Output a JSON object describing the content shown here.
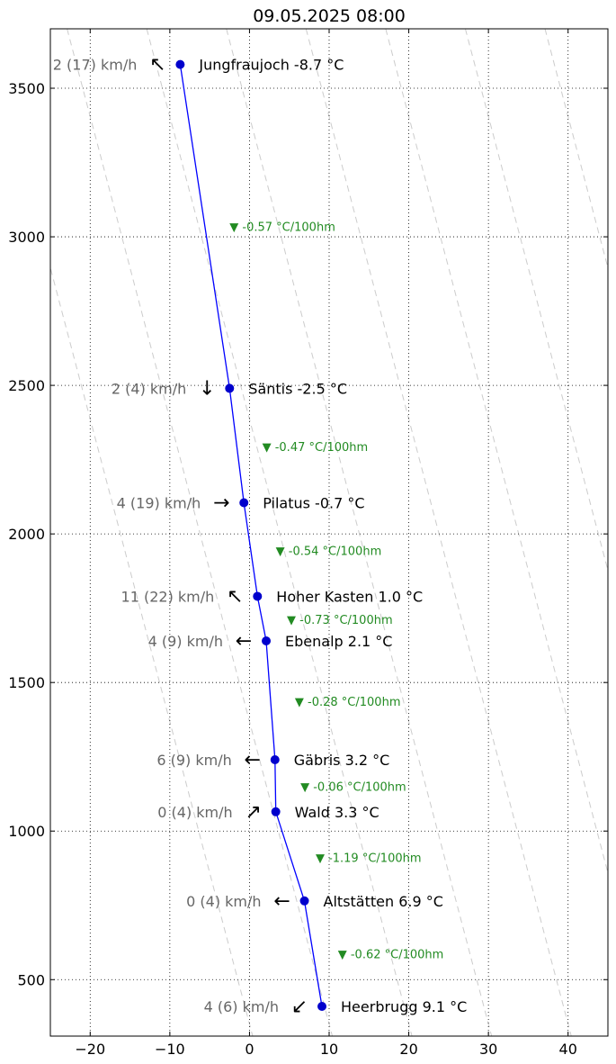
{
  "chart_data": {
    "type": "line",
    "title": "09.05.2025 08:00",
    "xlabel": "",
    "ylabel": "",
    "xlim": [
      -25,
      45
    ],
    "ylim": [
      310,
      3700
    ],
    "x_ticks": [
      -20,
      -10,
      0,
      10,
      20,
      30,
      40
    ],
    "x_tick_labels": [
      "−20",
      "−10",
      "0",
      "10",
      "20",
      "30",
      "40"
    ],
    "y_ticks": [
      500,
      1000,
      1500,
      2000,
      2500,
      3000,
      3500
    ],
    "y_tick_labels": [
      "500",
      "1000",
      "1500",
      "2000",
      "2500",
      "3000",
      "3500"
    ],
    "grid": true,
    "grid_style": "dotted",
    "line_color": "#0000ff",
    "marker_color": "#0000cc",
    "lapse_color": "#228b22",
    "wind_label_color": "#666666",
    "dry_adiabat_color": "#cccccc",
    "dry_adiabats": [
      {
        "x0": -32.9,
        "x1": 0.4
      },
      {
        "x0": -22.9,
        "x1": 10.4
      },
      {
        "x0": -12.9,
        "x1": 20.4
      },
      {
        "x0": -2.9,
        "x1": 30.4
      },
      {
        "x0": 7.1,
        "x1": 40.4
      },
      {
        "x0": 17.1,
        "x1": 50.4
      },
      {
        "x0": 27.1,
        "x1": 60.4
      },
      {
        "x0": 37.1,
        "x1": 70.4
      },
      {
        "x0": 47.1,
        "x1": 80.4
      }
    ],
    "stations": [
      {
        "label": "Jungfraujoch -8.7 °C",
        "temp": -8.7,
        "alt": 3580,
        "wind": "2 (17) km/h",
        "arrow": "↖"
      },
      {
        "label": "Säntis -2.5 °C",
        "temp": -2.5,
        "alt": 2490,
        "wind": "2 (4) km/h",
        "arrow": "↓"
      },
      {
        "label": "Pilatus -0.7 °C",
        "temp": -0.7,
        "alt": 2105,
        "wind": "4 (19) km/h",
        "arrow": "→"
      },
      {
        "label": "Hoher Kasten 1.0 °C",
        "temp": 1.0,
        "alt": 1790,
        "wind": "11 (22) km/h",
        "arrow": "↖"
      },
      {
        "label": "Ebenalp 2.1 °C",
        "temp": 2.1,
        "alt": 1640,
        "wind": "4 (9) km/h",
        "arrow": "←"
      },
      {
        "label": "Gäbris 3.2 °C",
        "temp": 3.2,
        "alt": 1240,
        "wind": "6 (9) km/h",
        "arrow": "←"
      },
      {
        "label": "Wald 3.3 °C",
        "temp": 3.3,
        "alt": 1065,
        "wind": "0 (4) km/h",
        "arrow": "↗"
      },
      {
        "label": "Altstätten 6.9 °C",
        "temp": 6.9,
        "alt": 765,
        "wind": "0 (4) km/h",
        "arrow": "←"
      },
      {
        "label": "Heerbrugg 9.1 °C",
        "temp": 9.1,
        "alt": 410,
        "wind": "4 (6) km/h",
        "arrow": "↙"
      }
    ],
    "lapse_rates": [
      {
        "label": "▼ -0.57 °C/100hm",
        "x": -2.5,
        "alt": 3035
      },
      {
        "label": "▼ -0.47 °C/100hm",
        "x": 1.6,
        "alt": 2295
      },
      {
        "label": "▼ -0.54 °C/100hm",
        "x": 3.3,
        "alt": 1945
      },
      {
        "label": "▼ -0.73 °C/100hm",
        "x": 4.7,
        "alt": 1712
      },
      {
        "label": "▼ -0.28 °C/100hm",
        "x": 5.7,
        "alt": 1437
      },
      {
        "label": "▼ -0.06 °C/100hm",
        "x": 6.4,
        "alt": 1150
      },
      {
        "label": "▼ -1.19 °C/100hm",
        "x": 8.3,
        "alt": 912
      },
      {
        "label": "▼ -0.62 °C/100hm",
        "x": 11.1,
        "alt": 587
      }
    ]
  }
}
